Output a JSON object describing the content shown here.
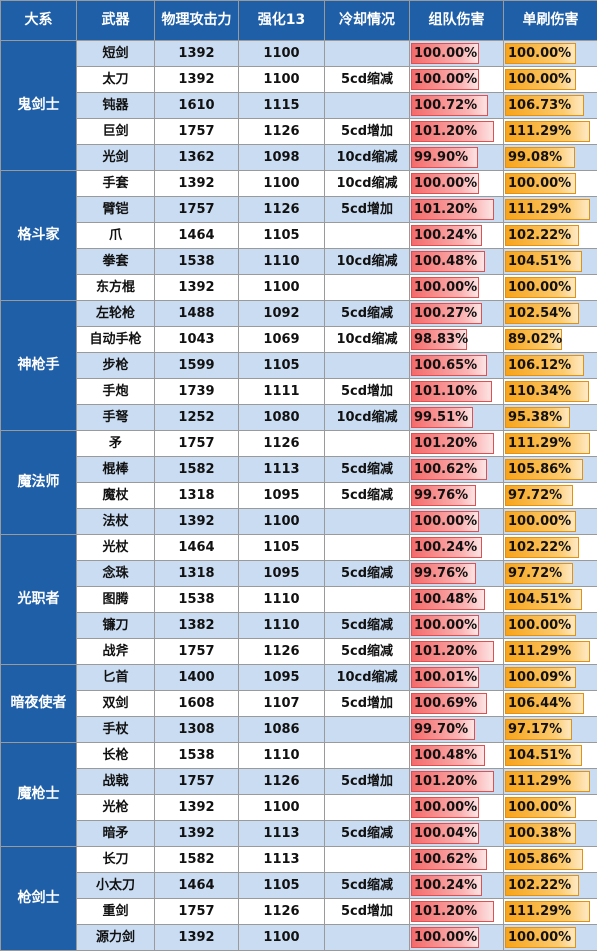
{
  "headers": [
    "大系",
    "武器",
    "物理攻击力",
    "强化13",
    "冷却情况",
    "组队伤害",
    "单刷伤害"
  ],
  "groups": [
    {
      "name": "鬼剑士",
      "rows": [
        {
          "weapon": "短剑",
          "atk": "1392",
          "enh": "1100",
          "cd": "",
          "team": "100.00%",
          "team_val": 100.0,
          "solo": "100.00%",
          "solo_val": 100.0
        },
        {
          "weapon": "太刀",
          "atk": "1392",
          "enh": "1100",
          "cd": "5cd缩减",
          "team": "100.00%",
          "team_val": 100.0,
          "solo": "100.00%",
          "solo_val": 100.0
        },
        {
          "weapon": "钝器",
          "atk": "1610",
          "enh": "1115",
          "cd": "",
          "team": "100.72%",
          "team_val": 100.72,
          "solo": "106.73%",
          "solo_val": 106.73
        },
        {
          "weapon": "巨剑",
          "atk": "1757",
          "enh": "1126",
          "cd": "5cd增加",
          "team": "101.20%",
          "team_val": 101.2,
          "solo": "111.29%",
          "solo_val": 111.29
        },
        {
          "weapon": "光剑",
          "atk": "1362",
          "enh": "1098",
          "cd": "10cd缩减",
          "team": "99.90%",
          "team_val": 99.9,
          "solo": "99.08%",
          "solo_val": 99.08
        }
      ]
    },
    {
      "name": "格斗家",
      "rows": [
        {
          "weapon": "手套",
          "atk": "1392",
          "enh": "1100",
          "cd": "10cd缩减",
          "team": "100.00%",
          "team_val": 100.0,
          "solo": "100.00%",
          "solo_val": 100.0
        },
        {
          "weapon": "臂铠",
          "atk": "1757",
          "enh": "1126",
          "cd": "5cd增加",
          "team": "101.20%",
          "team_val": 101.2,
          "solo": "111.29%",
          "solo_val": 111.29
        },
        {
          "weapon": "爪",
          "atk": "1464",
          "enh": "1105",
          "cd": "",
          "team": "100.24%",
          "team_val": 100.24,
          "solo": "102.22%",
          "solo_val": 102.22
        },
        {
          "weapon": "拳套",
          "atk": "1538",
          "enh": "1110",
          "cd": "10cd缩减",
          "team": "100.48%",
          "team_val": 100.48,
          "solo": "104.51%",
          "solo_val": 104.51
        },
        {
          "weapon": "东方棍",
          "atk": "1392",
          "enh": "1100",
          "cd": "",
          "team": "100.00%",
          "team_val": 100.0,
          "solo": "100.00%",
          "solo_val": 100.0
        }
      ]
    },
    {
      "name": "神枪手",
      "rows": [
        {
          "weapon": "左轮枪",
          "atk": "1488",
          "enh": "1092",
          "cd": "5cd缩减",
          "team": "100.27%",
          "team_val": 100.27,
          "solo": "102.54%",
          "solo_val": 102.54
        },
        {
          "weapon": "自动手枪",
          "atk": "1043",
          "enh": "1069",
          "cd": "10cd缩减",
          "team": "98.83%",
          "team_val": 98.83,
          "solo": "89.02%",
          "solo_val": 89.02
        },
        {
          "weapon": "步枪",
          "atk": "1599",
          "enh": "1105",
          "cd": "",
          "team": "100.65%",
          "team_val": 100.65,
          "solo": "106.12%",
          "solo_val": 106.12
        },
        {
          "weapon": "手炮",
          "atk": "1739",
          "enh": "1111",
          "cd": "5cd增加",
          "team": "101.10%",
          "team_val": 101.1,
          "solo": "110.34%",
          "solo_val": 110.34
        },
        {
          "weapon": "手弩",
          "atk": "1252",
          "enh": "1080",
          "cd": "10cd缩减",
          "team": "99.51%",
          "team_val": 99.51,
          "solo": "95.38%",
          "solo_val": 95.38
        }
      ]
    },
    {
      "name": "魔法师",
      "rows": [
        {
          "weapon": "矛",
          "atk": "1757",
          "enh": "1126",
          "cd": "",
          "team": "101.20%",
          "team_val": 101.2,
          "solo": "111.29%",
          "solo_val": 111.29
        },
        {
          "weapon": "棍棒",
          "atk": "1582",
          "enh": "1113",
          "cd": "5cd缩减",
          "team": "100.62%",
          "team_val": 100.62,
          "solo": "105.86%",
          "solo_val": 105.86
        },
        {
          "weapon": "魔杖",
          "atk": "1318",
          "enh": "1095",
          "cd": "5cd缩减",
          "team": "99.76%",
          "team_val": 99.76,
          "solo": "97.72%",
          "solo_val": 97.72
        },
        {
          "weapon": "法杖",
          "atk": "1392",
          "enh": "1100",
          "cd": "",
          "team": "100.00%",
          "team_val": 100.0,
          "solo": "100.00%",
          "solo_val": 100.0
        }
      ]
    },
    {
      "name": "光职者",
      "rows": [
        {
          "weapon": "光杖",
          "atk": "1464",
          "enh": "1105",
          "cd": "",
          "team": "100.24%",
          "team_val": 100.24,
          "solo": "102.22%",
          "solo_val": 102.22
        },
        {
          "weapon": "念珠",
          "atk": "1318",
          "enh": "1095",
          "cd": "5cd缩减",
          "team": "99.76%",
          "team_val": 99.76,
          "solo": "97.72%",
          "solo_val": 97.72
        },
        {
          "weapon": "图腾",
          "atk": "1538",
          "enh": "1110",
          "cd": "",
          "team": "100.48%",
          "team_val": 100.48,
          "solo": "104.51%",
          "solo_val": 104.51
        },
        {
          "weapon": "镰刀",
          "atk": "1382",
          "enh": "1110",
          "cd": "5cd缩减",
          "team": "100.00%",
          "team_val": 100.0,
          "solo": "100.00%",
          "solo_val": 100.0
        },
        {
          "weapon": "战斧",
          "atk": "1757",
          "enh": "1126",
          "cd": "5cd缩减",
          "team": "101.20%",
          "team_val": 101.2,
          "solo": "111.29%",
          "solo_val": 111.29
        }
      ]
    },
    {
      "name": "暗夜使者",
      "rows": [
        {
          "weapon": "匕首",
          "atk": "1400",
          "enh": "1095",
          "cd": "10cd缩减",
          "team": "100.01%",
          "team_val": 100.01,
          "solo": "100.09%",
          "solo_val": 100.09
        },
        {
          "weapon": "双剑",
          "atk": "1608",
          "enh": "1107",
          "cd": "5cd增加",
          "team": "100.69%",
          "team_val": 100.69,
          "solo": "106.44%",
          "solo_val": 106.44
        },
        {
          "weapon": "手杖",
          "atk": "1308",
          "enh": "1086",
          "cd": "",
          "team": "99.70%",
          "team_val": 99.7,
          "solo": "97.17%",
          "solo_val": 97.17
        }
      ]
    },
    {
      "name": "魔枪士",
      "rows": [
        {
          "weapon": "长枪",
          "atk": "1538",
          "enh": "1110",
          "cd": "",
          "team": "100.48%",
          "team_val": 100.48,
          "solo": "104.51%",
          "solo_val": 104.51
        },
        {
          "weapon": "战戟",
          "atk": "1757",
          "enh": "1126",
          "cd": "5cd增加",
          "team": "101.20%",
          "team_val": 101.2,
          "solo": "111.29%",
          "solo_val": 111.29
        },
        {
          "weapon": "光枪",
          "atk": "1392",
          "enh": "1100",
          "cd": "",
          "team": "100.00%",
          "team_val": 100.0,
          "solo": "100.00%",
          "solo_val": 100.0
        },
        {
          "weapon": "暗矛",
          "atk": "1392",
          "enh": "1113",
          "cd": "5cd缩减",
          "team": "100.04%",
          "team_val": 100.04,
          "solo": "100.38%",
          "solo_val": 100.38
        }
      ]
    },
    {
      "name": "枪剑士",
      "rows": [
        {
          "weapon": "长刀",
          "atk": "1582",
          "enh": "1113",
          "cd": "",
          "team": "100.62%",
          "team_val": 100.62,
          "solo": "105.86%",
          "solo_val": 105.86
        },
        {
          "weapon": "小太刀",
          "atk": "1464",
          "enh": "1105",
          "cd": "5cd缩减",
          "team": "100.24%",
          "team_val": 100.24,
          "solo": "102.22%",
          "solo_val": 102.22
        },
        {
          "weapon": "重剑",
          "atk": "1757",
          "enh": "1126",
          "cd": "5cd增加",
          "team": "101.20%",
          "team_val": 101.2,
          "solo": "111.29%",
          "solo_val": 111.29
        },
        {
          "weapon": "源力剑",
          "atk": "1392",
          "enh": "1100",
          "cd": "",
          "team": "100.00%",
          "team_val": 100.0,
          "solo": "100.00%",
          "solo_val": 100.0
        }
      ]
    }
  ],
  "colors": {
    "header_bg": "#1f5fa8",
    "row_alt": "#c9dcf2",
    "team_bar": "#f46a6a",
    "solo_bar": "#f7a41a"
  }
}
